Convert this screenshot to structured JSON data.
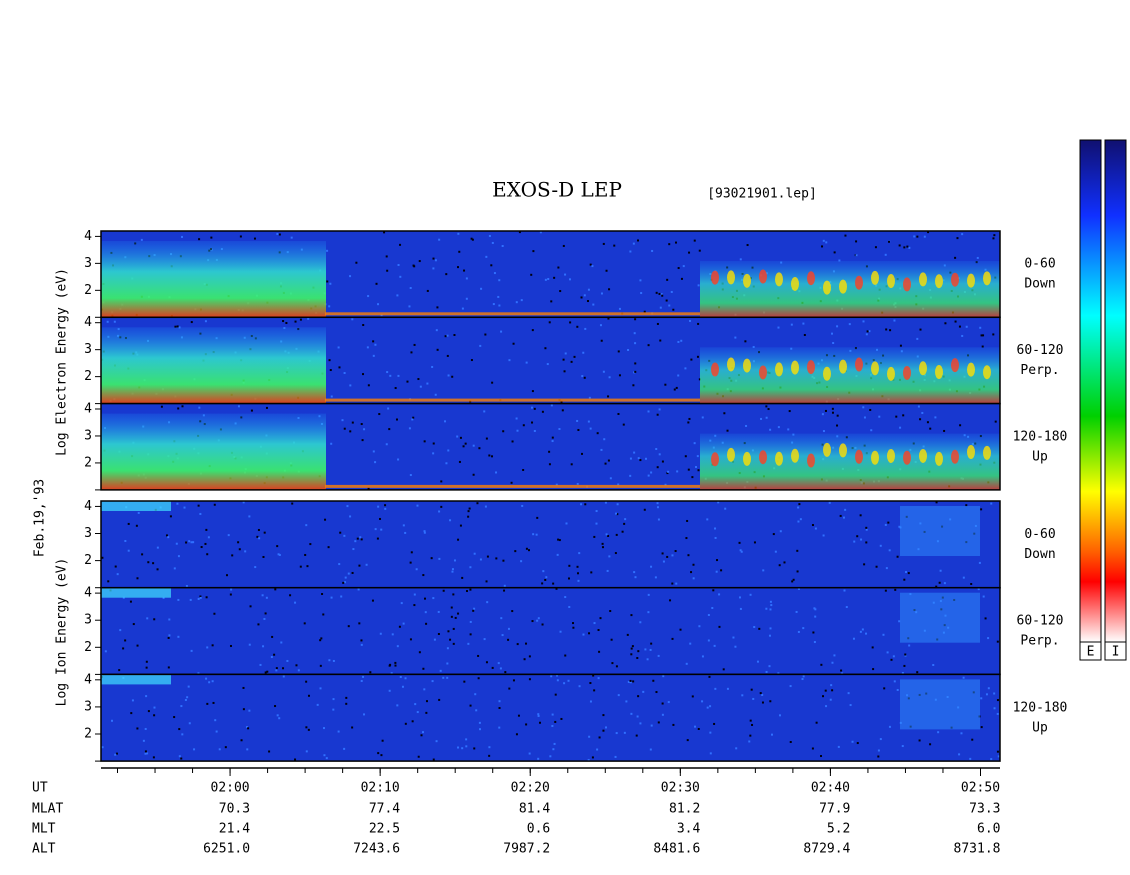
{
  "title": "EXOS-D LEP",
  "file": "[93021901.lep]",
  "date": "Feb.19,'93",
  "electron": {
    "ylabel": "Log  Electron  Energy (eV)",
    "panels": [
      {
        "label": "0-60",
        "direction": "Down"
      },
      {
        "label": "60-120",
        "direction": "Perp."
      },
      {
        "label": "120-180",
        "direction": "Up"
      }
    ]
  },
  "ion": {
    "ylabel": "Log  Ion  Energy (eV)",
    "panels": [
      {
        "label": "0-60",
        "direction": "Down"
      },
      {
        "label": "60-120",
        "direction": "Perp."
      },
      {
        "label": "120-180",
        "direction": "Up"
      }
    ]
  },
  "axis": {
    "ylim": [
      1,
      4.2
    ],
    "yticks": [
      2,
      3,
      4
    ],
    "xlim": [
      111.4,
      171.3
    ],
    "xticks": [
      {
        "value": 120,
        "label": "02:00"
      },
      {
        "value": 130,
        "label": "02:10"
      },
      {
        "value": 140,
        "label": "02:20"
      },
      {
        "value": 150,
        "label": "02:30"
      },
      {
        "value": 160,
        "label": "02:40"
      },
      {
        "value": 170,
        "label": "02:50"
      }
    ]
  },
  "ephemeris": {
    "ut_label": "UT",
    "rows": [
      {
        "label": "MLAT",
        "values": [
          "70.3",
          "77.4",
          "81.4",
          "81.2",
          "77.9",
          "73.3"
        ]
      },
      {
        "label": "MLT",
        "values": [
          "21.4",
          "22.5",
          "0.6",
          "3.4",
          "5.2",
          "6.0"
        ]
      },
      {
        "label": "ALT",
        "values": [
          "6251.0",
          "7243.6",
          "7987.2",
          "8481.6",
          "8729.4",
          "8731.8"
        ]
      }
    ]
  },
  "colorbars": [
    "E",
    "I"
  ]
}
